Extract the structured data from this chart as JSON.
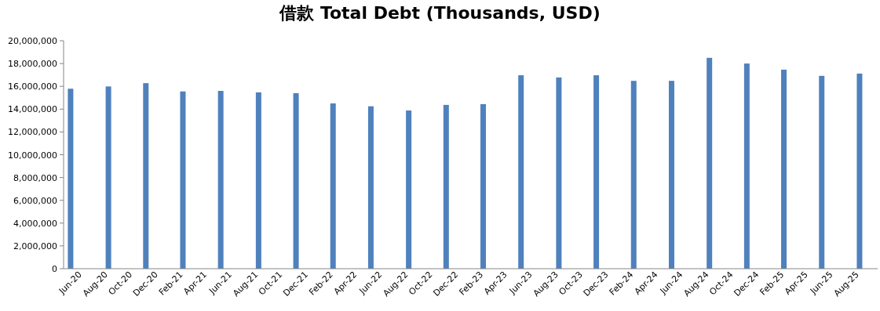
{
  "chart_data": {
    "type": "bar",
    "title": "借款 Total Debt (Thousands, USD)",
    "color": "#4f81bd",
    "x": [
      "2020-06",
      "2020-09",
      "2020-12",
      "2021-03",
      "2021-06",
      "2021-09",
      "2021-12",
      "2022-03",
      "2022-06",
      "2022-09",
      "2022-12",
      "2023-03",
      "2023-06",
      "2023-09",
      "2023-12",
      "2024-03",
      "2024-06",
      "2024-09",
      "2024-12",
      "2025-03",
      "2025-06",
      "2025-09"
    ],
    "values": [
      15790000,
      15990000,
      16280000,
      15550000,
      15600000,
      15470000,
      15400000,
      14500000,
      14250000,
      13880000,
      14370000,
      14440000,
      16970000,
      16780000,
      16970000,
      16480000,
      16480000,
      18500000,
      18000000,
      17460000,
      16920000,
      17120000
    ],
    "xlim": [
      "2020-05-15",
      "2025-10-15"
    ],
    "xticks": [
      {
        "value": "2020-06",
        "label": "Jun-20"
      },
      {
        "value": "2020-08",
        "label": "Aug-20"
      },
      {
        "value": "2020-10",
        "label": "Oct-20"
      },
      {
        "value": "2020-12",
        "label": "Dec-20"
      },
      {
        "value": "2021-02",
        "label": "Feb-21"
      },
      {
        "value": "2021-04",
        "label": "Apr-21"
      },
      {
        "value": "2021-06",
        "label": "Jun-21"
      },
      {
        "value": "2021-08",
        "label": "Aug-21"
      },
      {
        "value": "2021-10",
        "label": "Oct-21"
      },
      {
        "value": "2021-12",
        "label": "Dec-21"
      },
      {
        "value": "2022-02",
        "label": "Feb-22"
      },
      {
        "value": "2022-04",
        "label": "Apr-22"
      },
      {
        "value": "2022-06",
        "label": "Jun-22"
      },
      {
        "value": "2022-08",
        "label": "Aug-22"
      },
      {
        "value": "2022-10",
        "label": "Oct-22"
      },
      {
        "value": "2022-12",
        "label": "Dec-22"
      },
      {
        "value": "2023-02",
        "label": "Feb-23"
      },
      {
        "value": "2023-04",
        "label": "Apr-23"
      },
      {
        "value": "2023-06",
        "label": "Jun-23"
      },
      {
        "value": "2023-08",
        "label": "Aug-23"
      },
      {
        "value": "2023-10",
        "label": "Oct-23"
      },
      {
        "value": "2023-12",
        "label": "Dec-23"
      },
      {
        "value": "2024-02",
        "label": "Feb-24"
      },
      {
        "value": "2024-04",
        "label": "Apr-24"
      },
      {
        "value": "2024-06",
        "label": "Jun-24"
      },
      {
        "value": "2024-08",
        "label": "Aug-24"
      },
      {
        "value": "2024-10",
        "label": "Oct-24"
      },
      {
        "value": "2024-12",
        "label": "Dec-24"
      },
      {
        "value": "2025-02",
        "label": "Feb-25"
      },
      {
        "value": "2025-04",
        "label": "Apr-25"
      },
      {
        "value": "2025-06",
        "label": "Jun-25"
      },
      {
        "value": "2025-08",
        "label": "Aug-25"
      }
    ],
    "ylim": [
      0,
      20000000
    ],
    "yticks": [
      {
        "value": 0,
        "label": "0"
      },
      {
        "value": 2000000,
        "label": "2,000,000"
      },
      {
        "value": 4000000,
        "label": "4,000,000"
      },
      {
        "value": 6000000,
        "label": "6,000,000"
      },
      {
        "value": 8000000,
        "label": "8,000,000"
      },
      {
        "value": 10000000,
        "label": "10,000,000"
      },
      {
        "value": 12000000,
        "label": "12,000,000"
      },
      {
        "value": 14000000,
        "label": "14,000,000"
      },
      {
        "value": 16000000,
        "label": "16,000,000"
      },
      {
        "value": 18000000,
        "label": "18,000,000"
      },
      {
        "value": 20000000,
        "label": "20,000,000"
      }
    ],
    "grid": false
  }
}
